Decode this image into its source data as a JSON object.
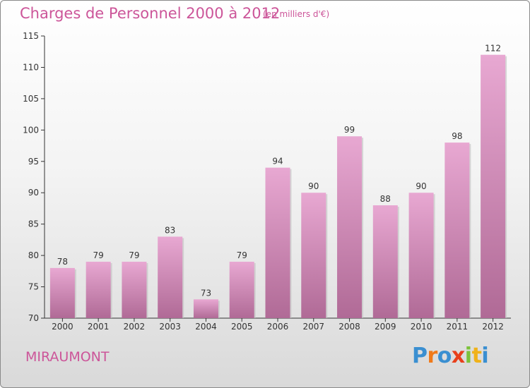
{
  "header": {
    "title": "Charges de Personnel 2000 à 2012",
    "subtitle": "(en milliers d'€)"
  },
  "footer": {
    "town": "MIRAUMONT",
    "logo": "Proxiti"
  },
  "colors": {
    "accent": "#cc5599",
    "bar_light": "#e8a8d2",
    "bar_dark": "#b06a96",
    "logo_letters": [
      "#3a8fd1",
      "#f07a1a",
      "#3a8fd1",
      "#e8401c",
      "#7cc23a",
      "#f0b21a",
      "#3a8fd1"
    ]
  },
  "chart_data": {
    "type": "bar",
    "categories": [
      "2000",
      "2001",
      "2002",
      "2003",
      "2004",
      "2005",
      "2006",
      "2007",
      "2008",
      "2009",
      "2010",
      "2011",
      "2012"
    ],
    "values": [
      78,
      79,
      79,
      83,
      73,
      79,
      94,
      90,
      99,
      88,
      90,
      98,
      112
    ],
    "title": "Charges de Personnel 2000 à 2012",
    "subtitle": "(en milliers d'€)",
    "xlabel": "",
    "ylabel": "",
    "ylim": [
      70,
      115
    ],
    "yticks": [
      70,
      75,
      80,
      85,
      90,
      95,
      100,
      105,
      110,
      115
    ],
    "grid": false,
    "legend": "none"
  }
}
